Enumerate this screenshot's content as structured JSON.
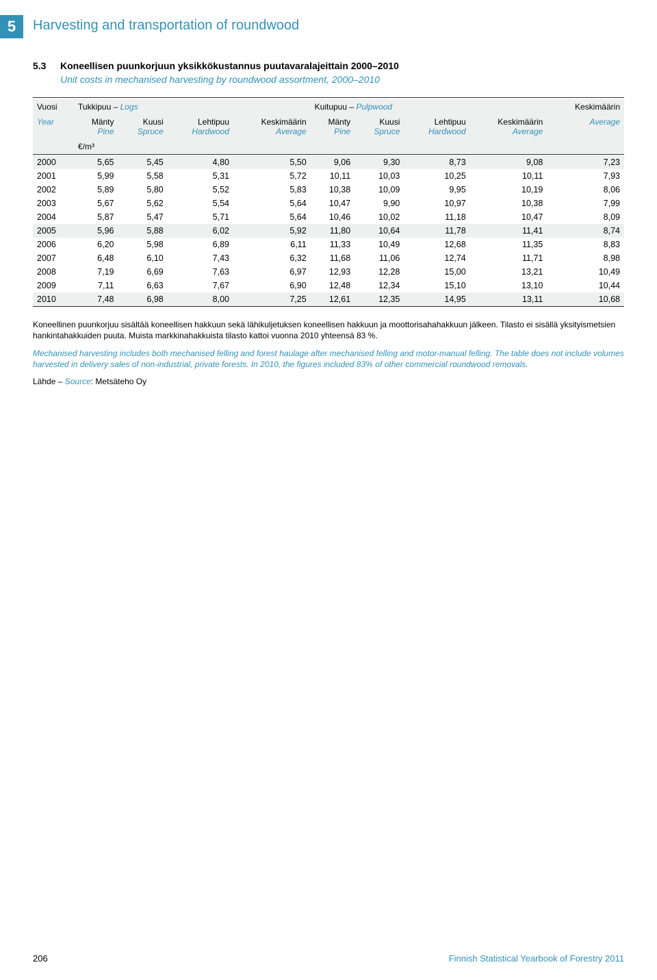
{
  "chapter": {
    "number": "5",
    "title": "Harvesting and transportation of roundwood"
  },
  "table": {
    "number": "5.3",
    "title_fi": "Koneellisen puunkorjuun yksikkökustannus puutavaralajeittain 2000–2010",
    "title_en": "Unit costs in mechanised harvesting by roundwood assortment, 2000–2010",
    "headers": {
      "vuosi_fi": "Vuosi",
      "vuosi_en": "Year",
      "logs_fi": "Tukkipuu –",
      "logs_en": "Logs",
      "pulp_fi": "Kuitupuu –",
      "pulp_en": "Pulpwood",
      "avg_fi": "Keskimäärin",
      "avg_en": "Average",
      "manty_fi": "Mänty",
      "manty_en": "Pine",
      "kuusi_fi": "Kuusi",
      "kuusi_en": "Spruce",
      "lehti_fi": "Lehtipuu",
      "lehti_en": "Hardwood",
      "keski_fi": "Keskimäärin",
      "keski_en": "Average",
      "unit": "€/m³"
    },
    "rows": [
      {
        "y": "2000",
        "c": [
          "5,65",
          "5,45",
          "4,80",
          "5,50",
          "9,06",
          "9,30",
          "8,73",
          "9,08",
          "7,23"
        ],
        "band": true
      },
      {
        "y": "2001",
        "c": [
          "5,99",
          "5,58",
          "5,31",
          "5,72",
          "10,11",
          "10,03",
          "10,25",
          "10,11",
          "7,93"
        ]
      },
      {
        "y": "2002",
        "c": [
          "5,89",
          "5,80",
          "5,52",
          "5,83",
          "10,38",
          "10,09",
          "9,95",
          "10,19",
          "8,06"
        ]
      },
      {
        "y": "2003",
        "c": [
          "5,67",
          "5,62",
          "5,54",
          "5,64",
          "10,47",
          "9,90",
          "10,97",
          "10,38",
          "7,99"
        ]
      },
      {
        "y": "2004",
        "c": [
          "5,87",
          "5,47",
          "5,71",
          "5,64",
          "10,46",
          "10,02",
          "11,18",
          "10,47",
          "8,09"
        ]
      },
      {
        "y": "2005",
        "c": [
          "5,96",
          "5,88",
          "6,02",
          "5,92",
          "11,80",
          "10,64",
          "11,78",
          "11,41",
          "8,74"
        ],
        "band": true
      },
      {
        "y": "2006",
        "c": [
          "6,20",
          "5,98",
          "6,89",
          "6,11",
          "11,33",
          "10,49",
          "12,68",
          "11,35",
          "8,83"
        ]
      },
      {
        "y": "2007",
        "c": [
          "6,48",
          "6,10",
          "7,43",
          "6,32",
          "11,68",
          "11,06",
          "12,74",
          "11,71",
          "8,98"
        ]
      },
      {
        "y": "2008",
        "c": [
          "7,19",
          "6,69",
          "7,63",
          "6,97",
          "12,93",
          "12,28",
          "15,00",
          "13,21",
          "10,49"
        ]
      },
      {
        "y": "2009",
        "c": [
          "7,11",
          "6,63",
          "7,67",
          "6,90",
          "12,48",
          "12,34",
          "15,10",
          "13,10",
          "10,44"
        ]
      },
      {
        "y": "2010",
        "c": [
          "7,48",
          "6,98",
          "8,00",
          "7,25",
          "12,61",
          "12,35",
          "14,95",
          "13,11",
          "10,68"
        ],
        "band": true
      }
    ]
  },
  "notes": {
    "fi": "Koneellinen puunkorjuu sisältää koneellisen hakkuun sekä lähikuljetuksen koneellisen hakkuun ja moottorisahahakkuun jälkeen. Tilasto ei sisällä yksityismetsien hankintahakkuiden puuta. Muista markkinahakkuista tilasto kattoi vuonna 2010 yhteensä 83 %.",
    "en": "Mechanised harvesting includes both mechanised felling and forest haulage after mechanised felling and motor-manual felling. The table does not include volumes harvested in delivery sales of non-industrial, private forests. In 2010, the figures included 83% of other commercial roundwood removals."
  },
  "source": {
    "label_fi": "Lähde –",
    "label_en": "Source",
    "text": ": Metsäteho Oy"
  },
  "footer": {
    "page": "206",
    "book": "Finnish Statistical Yearbook of Forestry 2011"
  }
}
